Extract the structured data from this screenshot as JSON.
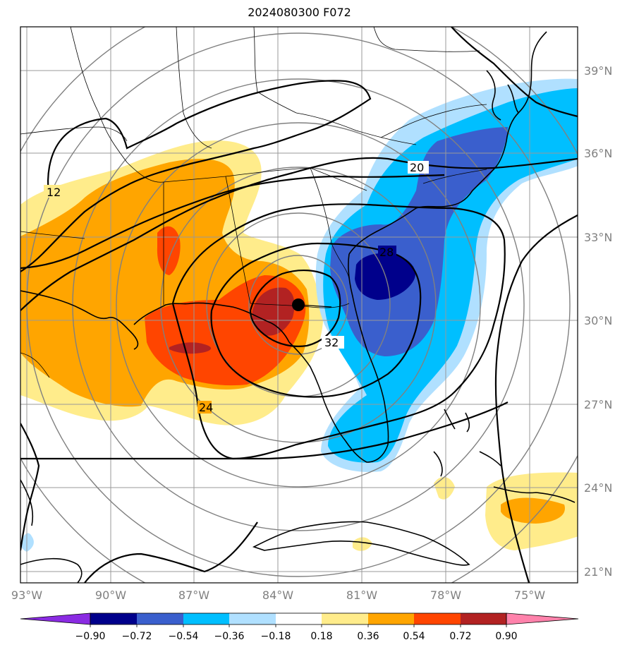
{
  "map": {
    "title": "2024080300 F072",
    "latitude_labels": [
      "39°N",
      "36°N",
      "33°N",
      "30°N",
      "27°N",
      "24°N",
      "21°N"
    ],
    "longitude_labels": [
      "93°W",
      "90°W",
      "87°W",
      "84°W",
      "81°W",
      "78°W",
      "75°W"
    ],
    "contour_labels": [
      "12",
      "20",
      "28",
      "32",
      "24"
    ],
    "storm_center": {
      "lat": 30.6,
      "lon": -83.3,
      "marker": "filled-circle"
    },
    "shading_colors": {
      "neg_090": "#8a2be2",
      "neg_072": "#00008b",
      "neg_054": "#3a5fcd",
      "neg_036": "#00bfff",
      "neg_018": "#b0e0ff",
      "neutral": "#ffffff",
      "pos_018": "#ffec8b",
      "pos_036": "#ffa500",
      "pos_054": "#ff4500",
      "pos_072": "#b22222",
      "pos_090": "#ff82ab"
    },
    "colorbar": {
      "ticks": [
        "−0.90",
        "−0.72",
        "−0.54",
        "−0.36",
        "−0.18",
        "0.18",
        "0.36",
        "0.54",
        "0.72",
        "0.90"
      ],
      "colors": [
        "#8a2be2",
        "#00008b",
        "#3a5fcd",
        "#00bfff",
        "#b0e0ff",
        "#ffffff",
        "#ffec8b",
        "#ffa500",
        "#ff4500",
        "#b22222",
        "#ff82ab"
      ]
    }
  }
}
